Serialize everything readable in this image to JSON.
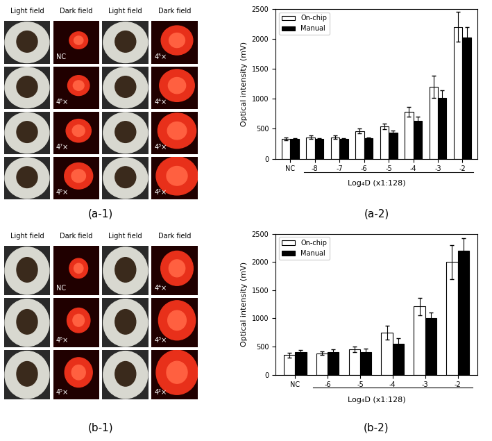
{
  "image_panels": [
    {
      "caption": "(a-1)",
      "column_headers": [
        "Light field",
        "Dark field",
        "Light field",
        "Dark field"
      ],
      "labels": [
        [
          "NC",
          "4⁸×",
          "4⁷×",
          "4⁶×"
        ],
        [
          "4⁵×",
          "4⁴×",
          "4³×",
          "4²×"
        ]
      ]
    },
    {
      "caption": "(b-1)",
      "column_headers": [
        "Light field",
        "Dark field",
        "Light field",
        "Dark field"
      ],
      "labels": [
        [
          "NC",
          "4⁶×",
          "4⁵×"
        ],
        [
          "4⁴×",
          "4³×",
          "4²×"
        ]
      ]
    }
  ],
  "chart_data": [
    {
      "type": "bar",
      "caption": "(a-2)",
      "x_label": "Log₄D (x1:128)",
      "y_label": "Optical intensity (mV)",
      "categories": [
        "NC",
        "-8",
        "-7",
        "-6",
        "-5",
        "-4",
        "-3",
        "-2"
      ],
      "series": [
        {
          "name": "On-chip",
          "color": "#ffffff",
          "values": [
            330,
            360,
            360,
            460,
            540,
            780,
            1200,
            2200
          ],
          "errors": [
            20,
            25,
            25,
            40,
            50,
            80,
            180,
            250
          ]
        },
        {
          "name": "Manual",
          "color": "#000000",
          "values": [
            330,
            330,
            330,
            340,
            440,
            630,
            1010,
            2020
          ],
          "errors": [
            15,
            15,
            15,
            15,
            30,
            70,
            130,
            180
          ]
        }
      ],
      "ylim": [
        0,
        2500
      ],
      "yticks": [
        0,
        500,
        1000,
        1500,
        2000,
        2500
      ],
      "legend": "upper left"
    },
    {
      "type": "bar",
      "caption": "(b-2)",
      "x_label": "Log₄D (x1:128)",
      "y_label": "Optical intensity (mV)",
      "categories": [
        "NC",
        "-6",
        "-5",
        "-4",
        "-3",
        "-2"
      ],
      "series": [
        {
          "name": "On-chip",
          "color": "#ffffff",
          "values": [
            350,
            380,
            450,
            750,
            1210,
            2000
          ],
          "errors": [
            40,
            30,
            50,
            120,
            150,
            300
          ]
        },
        {
          "name": "Manual",
          "color": "#000000",
          "values": [
            400,
            400,
            400,
            550,
            1000,
            2200
          ],
          "errors": [
            40,
            50,
            70,
            100,
            100,
            220
          ]
        }
      ],
      "ylim": [
        0,
        2500
      ],
      "yticks": [
        0,
        500,
        1000,
        1500,
        2000,
        2500
      ],
      "legend": "upper left"
    }
  ]
}
